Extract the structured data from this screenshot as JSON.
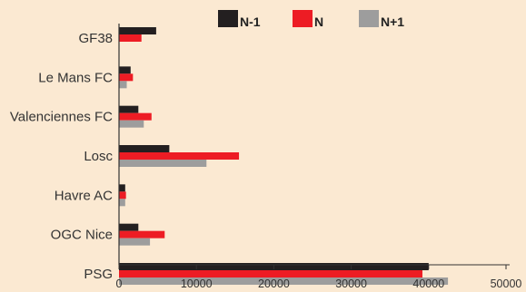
{
  "chart_data": {
    "type": "bar",
    "orientation": "horizontal",
    "categories": [
      "GF38",
      "Le Mans FC",
      "Valenciennes FC",
      "Losc",
      "Havre AC",
      "OGC Nice",
      "PSG"
    ],
    "series": [
      {
        "name": "N-1",
        "color": "#231f20",
        "values": [
          4800,
          1500,
          2500,
          6500,
          800,
          2500,
          40000
        ]
      },
      {
        "name": "N",
        "color": "#ed1c24",
        "values": [
          2900,
          1800,
          4200,
          15500,
          900,
          5900,
          39200
        ]
      },
      {
        "name": "N+1",
        "color": "#9d9d9d",
        "values": [
          0,
          1000,
          3200,
          11300,
          800,
          4000,
          42500
        ]
      }
    ],
    "xlim": [
      0,
      50000
    ],
    "xticks": [
      "0",
      "10000",
      "20000",
      "30000",
      "40000",
      "50000"
    ],
    "legend_position": "top-right",
    "grid": false
  }
}
